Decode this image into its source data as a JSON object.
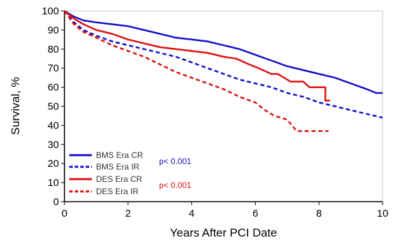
{
  "chart_data": {
    "type": "line",
    "title": "",
    "xlabel": "Years After PCI Date",
    "ylabel": "Survival, %",
    "xlim": [
      0,
      10
    ],
    "ylim": [
      0,
      100
    ],
    "xticks": [
      0,
      2,
      4,
      6,
      8,
      10
    ],
    "yticks": [
      0,
      10,
      20,
      30,
      40,
      50,
      60,
      70,
      80,
      90,
      100
    ],
    "grid": false,
    "legend_position": "bottom-left",
    "series": [
      {
        "name": "BMS Era CR",
        "color": "#1010cc",
        "dash": "solid",
        "x": [
          0,
          0.3,
          0.6,
          1.0,
          1.5,
          2.0,
          2.5,
          3.0,
          3.5,
          4.0,
          4.5,
          5.0,
          5.5,
          6.0,
          6.5,
          7.0,
          7.5,
          8.0,
          8.5,
          9.0,
          9.5,
          9.8,
          10.0
        ],
        "y": [
          100,
          97,
          95,
          94,
          93,
          92,
          90,
          88,
          86,
          85,
          84,
          82,
          80,
          77,
          74,
          71,
          69,
          67,
          65,
          62,
          59,
          57,
          57
        ]
      },
      {
        "name": "BMS Era IR",
        "color": "#1010cc",
        "dash": "dashed",
        "x": [
          0,
          0.3,
          0.6,
          1.0,
          1.5,
          2.0,
          2.5,
          3.0,
          3.5,
          4.0,
          4.5,
          5.0,
          5.5,
          6.0,
          6.5,
          7.0,
          7.5,
          8.0,
          8.5,
          9.0,
          9.5,
          10.0
        ],
        "y": [
          100,
          94,
          90,
          87,
          84,
          82,
          80,
          78,
          76,
          73,
          70,
          67,
          64,
          62,
          60,
          57,
          55,
          52,
          50,
          48,
          46,
          44
        ]
      },
      {
        "name": "DES Era CR",
        "color": "#dd1111",
        "dash": "solid",
        "x": [
          0,
          0.3,
          0.6,
          1.0,
          1.5,
          2.0,
          2.5,
          3.0,
          3.5,
          4.0,
          4.5,
          5.0,
          5.4,
          5.8,
          6.1,
          6.5,
          6.7,
          7.1,
          7.5,
          7.7,
          8.2,
          8.2,
          8.35
        ],
        "y": [
          100,
          96,
          93,
          90,
          88,
          85,
          83,
          81,
          80,
          79,
          78,
          76,
          75,
          72,
          70,
          67,
          67,
          63,
          63,
          60,
          60,
          53,
          53
        ]
      },
      {
        "name": "DES Era IR",
        "color": "#dd1111",
        "dash": "dashed",
        "x": [
          0,
          0.3,
          0.6,
          1.0,
          1.5,
          2.0,
          2.5,
          3.0,
          3.5,
          4.0,
          4.5,
          5.0,
          5.5,
          6.0,
          6.3,
          6.6,
          7.0,
          7.3,
          7.6,
          8.0,
          8.3
        ],
        "y": [
          100,
          93,
          89,
          86,
          82,
          79,
          76,
          72,
          68,
          65,
          62,
          59,
          55,
          52,
          48,
          45,
          43,
          37,
          37,
          37,
          37
        ]
      }
    ],
    "annotations": [
      {
        "text": "p< 0.001",
        "color": "#1010cc"
      },
      {
        "text": "p< 0.001",
        "color": "#dd1111"
      }
    ]
  }
}
